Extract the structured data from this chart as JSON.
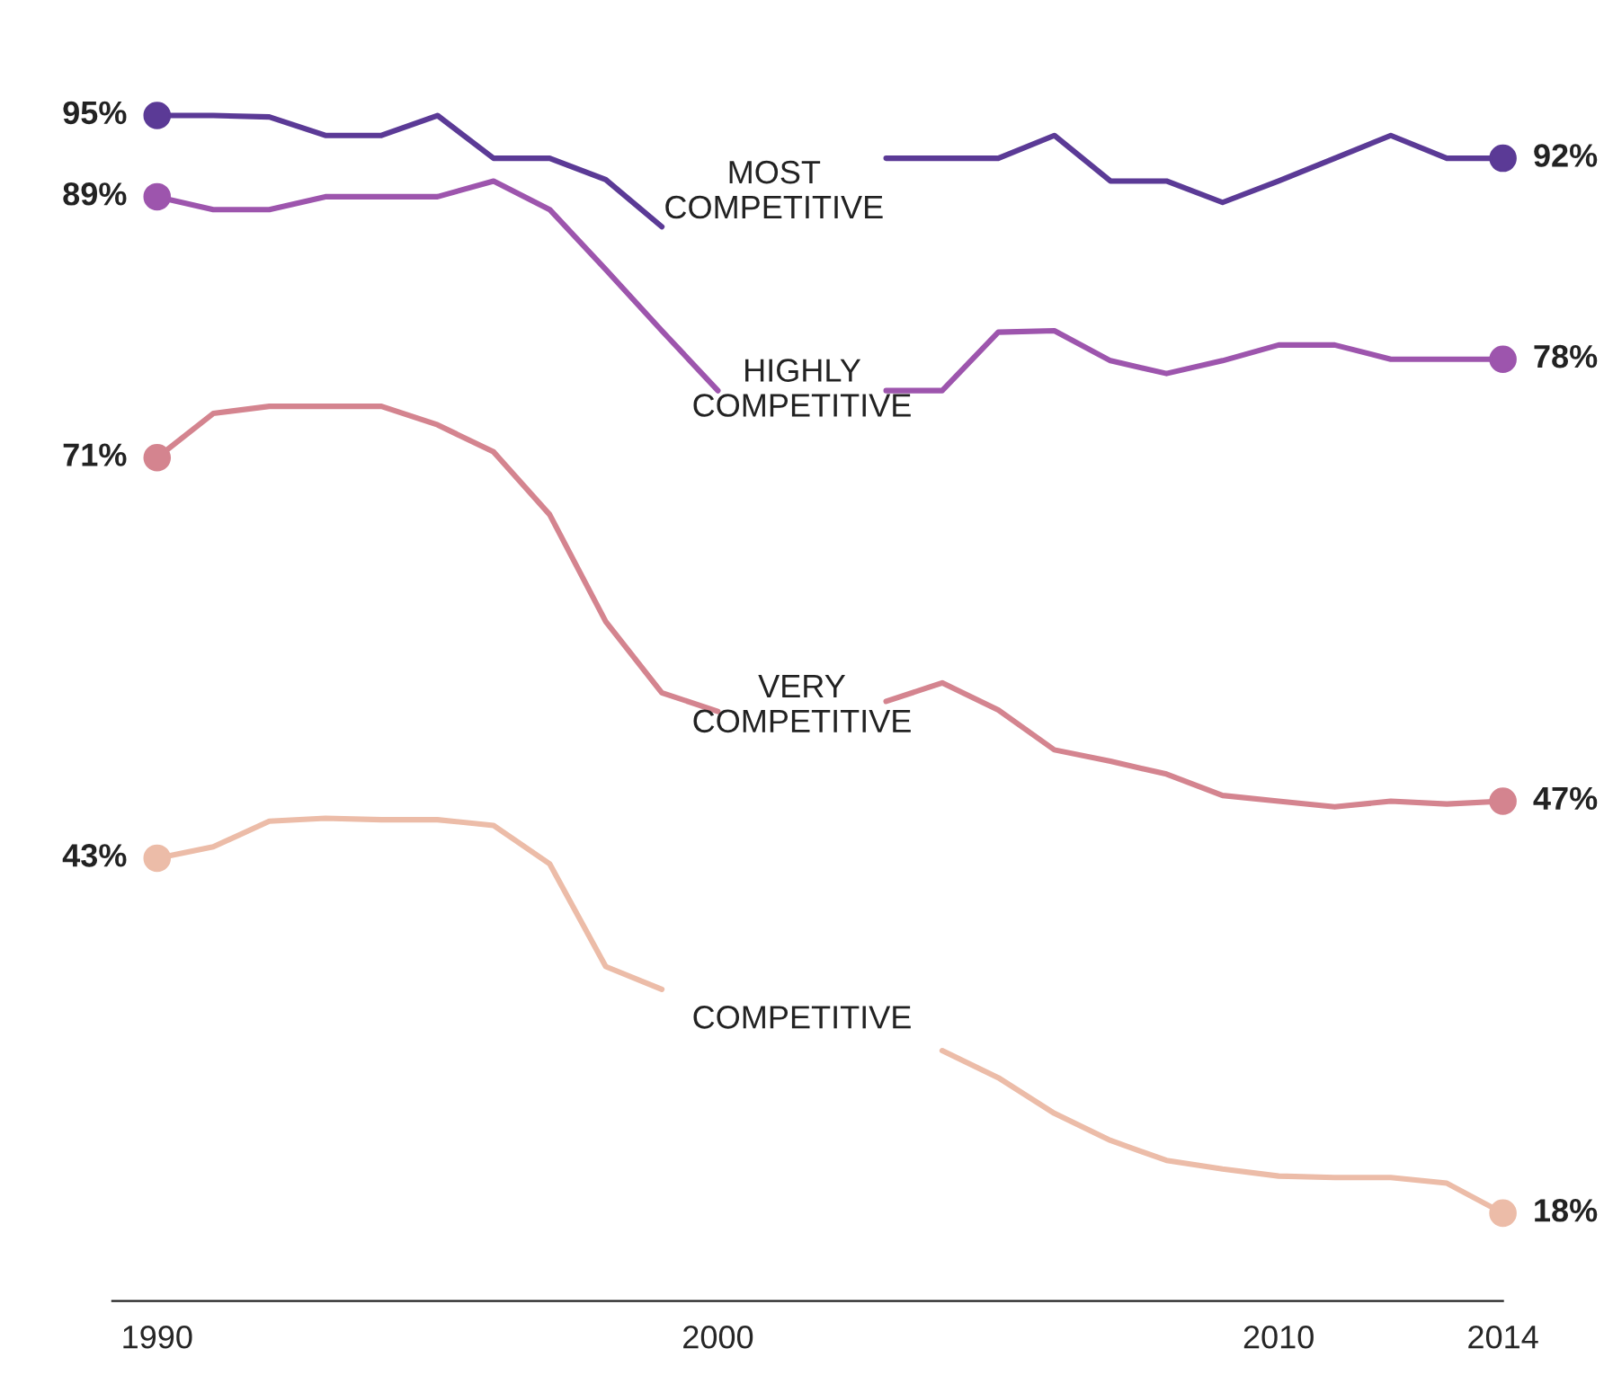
{
  "chart_data": {
    "type": "line",
    "x": [
      1990,
      1991,
      1992,
      1993,
      1994,
      1995,
      1996,
      1997,
      1998,
      1999,
      2000,
      2001,
      2002,
      2003,
      2004,
      2005,
      2006,
      2007,
      2008,
      2009,
      2010,
      2011,
      2012,
      2013,
      2014
    ],
    "series": [
      {
        "name": "MOST\nCOMPETITIVE",
        "color": "#5b3a96",
        "values": [
          95,
          95,
          94.9,
          93.6,
          93.6,
          95,
          92,
          92,
          90.5,
          87.2,
          null,
          null,
          null,
          92,
          92,
          92,
          93.6,
          90.4,
          90.4,
          88.9,
          90.4,
          92,
          93.6,
          92,
          92
        ],
        "value_labels": [
          "95%",
          null,
          null,
          null,
          null,
          null,
          null,
          null,
          null,
          null,
          null,
          null,
          null,
          null,
          null,
          null,
          null,
          null,
          null,
          null,
          null,
          null,
          null,
          null,
          "92%"
        ]
      },
      {
        "name": "HIGHLY\nCOMPETITIVE",
        "color": "#9d55ad",
        "values": [
          89.3,
          88.4,
          88.4,
          89.3,
          89.3,
          89.3,
          90.4,
          88.4,
          84.2,
          79.9,
          75.7,
          null,
          null,
          75.7,
          75.7,
          79.8,
          79.9,
          77.8,
          76.9,
          77.8,
          78.9,
          78.9,
          77.9,
          77.9,
          77.9
        ],
        "value_labels": [
          "89%",
          null,
          null,
          null,
          null,
          null,
          null,
          null,
          null,
          null,
          null,
          null,
          null,
          null,
          null,
          null,
          null,
          null,
          null,
          null,
          null,
          null,
          null,
          null,
          "78%"
        ]
      },
      {
        "name": "VERY\nCOMPETITIVE",
        "color": "#d4848f",
        "values": [
          71,
          74.1,
          74.6,
          74.6,
          74.6,
          73.3,
          71.4,
          67,
          59.5,
          54.5,
          53.2,
          null,
          null,
          53.9,
          55.2,
          53.3,
          50.5,
          49.7,
          48.8,
          47.3,
          46.9,
          46.5,
          46.9,
          46.7,
          46.9
        ],
        "value_labels": [
          "71%",
          null,
          null,
          null,
          null,
          null,
          null,
          null,
          null,
          null,
          null,
          null,
          null,
          null,
          null,
          null,
          null,
          null,
          null,
          null,
          null,
          null,
          null,
          null,
          "47%"
        ]
      },
      {
        "name": "COMPETITIVE",
        "color": "#ecbca8",
        "values": [
          42.9,
          43.7,
          45.5,
          45.7,
          45.6,
          45.6,
          45.2,
          42.5,
          35.3,
          33.7,
          null,
          null,
          null,
          null,
          29.4,
          27.5,
          25,
          23.1,
          21.7,
          21.1,
          20.6,
          20.5,
          20.5,
          20.1,
          18
        ],
        "value_labels": [
          "43%",
          null,
          null,
          null,
          null,
          null,
          null,
          null,
          null,
          null,
          null,
          null,
          null,
          null,
          null,
          null,
          null,
          null,
          null,
          null,
          null,
          null,
          null,
          null,
          "18%"
        ]
      }
    ],
    "xlim": [
      1989.2,
      2014
    ],
    "xticks": [
      1990,
      2000,
      2010,
      2014
    ],
    "tick_labels": "x",
    "grid": false,
    "legend": false,
    "line_style": "solid"
  }
}
